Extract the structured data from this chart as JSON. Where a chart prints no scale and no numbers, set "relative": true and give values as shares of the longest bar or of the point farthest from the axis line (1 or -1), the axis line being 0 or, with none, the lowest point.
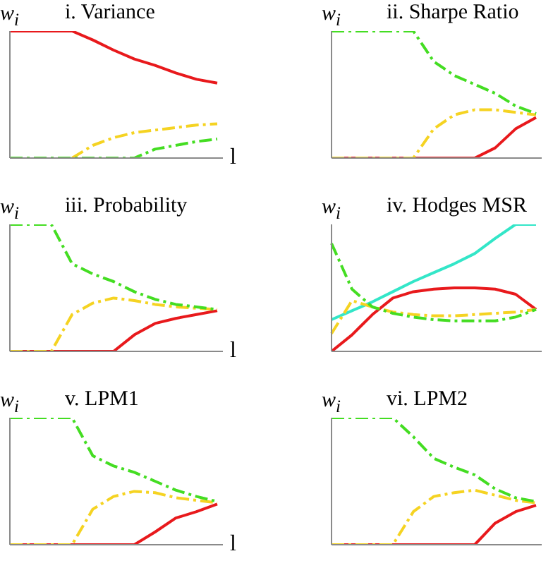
{
  "chart_data": [
    {
      "type": "line",
      "title": "i. Variance",
      "ylabel": "w$_{i}$",
      "xlabel": "l",
      "relative": true,
      "categories": [
        null,
        null,
        null,
        null,
        null,
        null,
        null,
        null,
        null,
        null,
        null
      ],
      "series": [
        {
          "color": "#e8191c",
          "line_style": "solid",
          "values": [
            1,
            1,
            1,
            1,
            0.93,
            0.85,
            0.78,
            0.73,
            0.67,
            0.62,
            0.59
          ]
        },
        {
          "color": "#f5d322",
          "line_style": "dashed",
          "values": [
            null,
            null,
            null,
            0,
            0.1,
            0.16,
            0.2,
            0.22,
            0.24,
            0.26,
            0.27
          ]
        },
        {
          "color": "#44dd22",
          "line_style": "dashed",
          "values": [
            0,
            0,
            0,
            0,
            0,
            0,
            0,
            0.07,
            0.1,
            0.13,
            0.15
          ]
        }
      ]
    },
    {
      "type": "line",
      "title": "ii. Sharpe Ratio",
      "ylabel": "w$_{i}$",
      "relative": true,
      "categories": [
        null,
        null,
        null,
        null,
        null,
        null,
        null,
        null,
        null,
        null,
        null
      ],
      "series": [
        {
          "color": "#e8191c",
          "line_style": "solid",
          "values": [
            0,
            0,
            0,
            0,
            0,
            0,
            0,
            0,
            0.08,
            0.23,
            0.32
          ]
        },
        {
          "color": "#f5d322",
          "line_style": "dashed",
          "values": [
            0,
            0,
            0,
            0,
            0,
            0.23,
            0.34,
            0.38,
            0.38,
            0.36,
            0.34
          ]
        },
        {
          "color": "#44dd22",
          "line_style": "dashed",
          "values": [
            1,
            1,
            1,
            1,
            1,
            0.76,
            0.65,
            0.58,
            0.51,
            0.41,
            0.35
          ]
        }
      ]
    },
    {
      "type": "line",
      "title": "iii. Probability",
      "ylabel": "w$_{i}$",
      "xlabel": "l",
      "relative": true,
      "categories": [
        null,
        null,
        null,
        null,
        null,
        null,
        null,
        null,
        null,
        null,
        null
      ],
      "series": [
        {
          "color": "#e8191c",
          "line_style": "solid",
          "values": [
            0,
            0,
            0,
            0,
            0,
            0,
            0.13,
            0.22,
            0.26,
            0.29,
            0.32
          ]
        },
        {
          "color": "#f5d322",
          "line_style": "dashed",
          "values": [
            0,
            0,
            0,
            0.29,
            0.38,
            0.42,
            0.4,
            0.37,
            0.35,
            0.34,
            0.33
          ]
        },
        {
          "color": "#44dd22",
          "line_style": "dashed",
          "values": [
            1,
            1,
            1,
            0.69,
            0.61,
            0.55,
            0.47,
            0.41,
            0.37,
            0.35,
            0.33
          ]
        }
      ]
    },
    {
      "type": "line",
      "title": "iv. Hodges MSR",
      "ylabel": "w$_{i}$",
      "relative": true,
      "categories": [
        null,
        null,
        null,
        null,
        null,
        null,
        null,
        null,
        null,
        null,
        null
      ],
      "series": [
        {
          "color": "#33e6c8",
          "line_style": "solid",
          "values": [
            0.25,
            0.32,
            0.39,
            0.47,
            0.55,
            0.62,
            0.69,
            0.77,
            0.89,
            1,
            1
          ]
        },
        {
          "color": "#e8191c",
          "line_style": "solid",
          "values": [
            0,
            0.13,
            0.29,
            0.42,
            0.47,
            0.49,
            0.5,
            0.5,
            0.49,
            0.45,
            0.33
          ]
        },
        {
          "color": "#f5d322",
          "line_style": "dashed",
          "values": [
            0.14,
            0.4,
            0.35,
            0.31,
            0.29,
            0.28,
            0.28,
            0.29,
            0.3,
            0.31,
            0.33
          ]
        },
        {
          "color": "#44dd22",
          "line_style": "dashed",
          "values": [
            0.85,
            0.49,
            0.35,
            0.3,
            0.27,
            0.25,
            0.24,
            0.24,
            0.24,
            0.27,
            0.33
          ]
        }
      ]
    },
    {
      "type": "line",
      "title": "v. LPM1",
      "ylabel": "w$_{i}$",
      "xlabel": "l",
      "relative": true,
      "categories": [
        null,
        null,
        null,
        null,
        null,
        null,
        null,
        null,
        null,
        null,
        null
      ],
      "series": [
        {
          "color": "#e8191c",
          "line_style": "solid",
          "values": [
            0,
            0,
            0,
            0,
            0,
            0,
            0,
            0.1,
            0.21,
            0.26,
            0.32
          ]
        },
        {
          "color": "#f5d322",
          "line_style": "dashed",
          "values": [
            0,
            0,
            0,
            0,
            0.28,
            0.38,
            0.42,
            0.41,
            0.37,
            0.35,
            0.33
          ]
        },
        {
          "color": "#44dd22",
          "line_style": "dashed",
          "values": [
            1,
            1,
            1,
            1,
            0.7,
            0.62,
            0.57,
            0.5,
            0.43,
            0.38,
            0.34
          ]
        }
      ]
    },
    {
      "type": "line",
      "title": "vi. LPM2",
      "ylabel": "w$_{i}$",
      "relative": true,
      "categories": [
        null,
        null,
        null,
        null,
        null,
        null,
        null,
        null,
        null,
        null,
        null
      ],
      "series": [
        {
          "color": "#e8191c",
          "line_style": "solid",
          "values": [
            0,
            0,
            0,
            0,
            0,
            0,
            0,
            0,
            0.17,
            0.26,
            0.31
          ]
        },
        {
          "color": "#f5d322",
          "line_style": "dashed",
          "values": [
            0,
            0,
            0,
            0,
            0.26,
            0.38,
            0.41,
            0.43,
            0.39,
            0.35,
            0.33
          ]
        },
        {
          "color": "#44dd22",
          "line_style": "dashed",
          "values": [
            1,
            1,
            1,
            1,
            0.85,
            0.68,
            0.61,
            0.55,
            0.44,
            0.37,
            0.34
          ]
        }
      ]
    }
  ]
}
